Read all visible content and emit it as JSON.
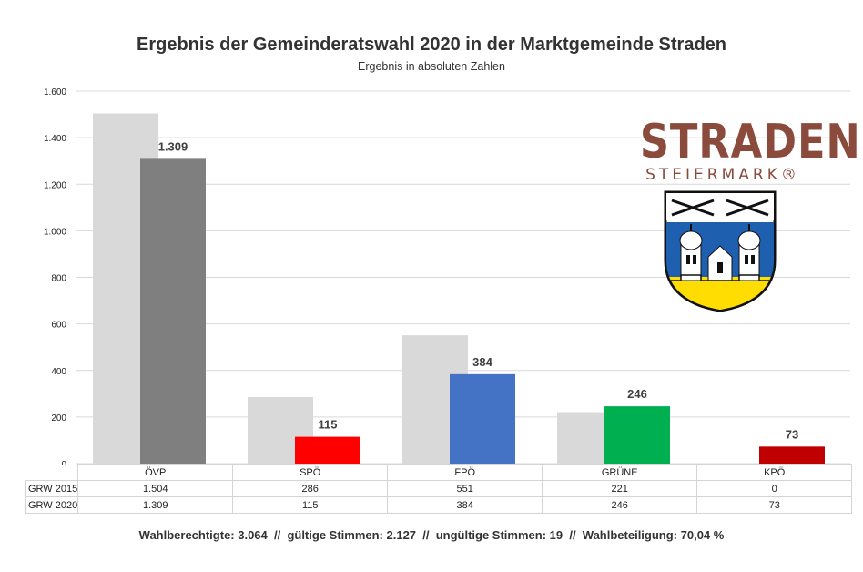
{
  "chart_data": {
    "type": "bar",
    "title": "Ergebnis der Gemeinderatswahl 2020 in der Marktgemeinde Straden",
    "subtitle": "Ergebnis in absoluten Zahlen",
    "categories": [
      "ÖVP",
      "SPÖ",
      "FPÖ",
      "GRÜNE",
      "KPÖ"
    ],
    "series": [
      {
        "name": "GRW 2015",
        "values": [
          1504,
          286,
          551,
          221,
          0
        ],
        "color": "#d9d9d9"
      },
      {
        "name": "GRW 2020",
        "values": [
          1309,
          115,
          384,
          246,
          73
        ],
        "colors": [
          "#7f7f7f",
          "#ff0000",
          "#4472c4",
          "#00b050",
          "#c00000"
        ]
      }
    ],
    "data_labels_2020": [
      "1.309",
      "115",
      "384",
      "246",
      "73"
    ],
    "ylim": [
      0,
      1600
    ],
    "yticks": [
      0,
      200,
      400,
      600,
      800,
      1000,
      1200,
      1400,
      1600
    ],
    "ytick_labels": [
      "0",
      "200",
      "400",
      "600",
      "800",
      "1.000",
      "1.200",
      "1.400",
      "1.600"
    ],
    "grid": true,
    "legend": "data table below chart"
  },
  "table": {
    "rows": [
      {
        "label": "GRW 2015",
        "cells": [
          "1.504",
          "286",
          "551",
          "221",
          "0"
        ]
      },
      {
        "label": "GRW 2020",
        "cells": [
          "1.309",
          "115",
          "384",
          "246",
          "73"
        ]
      }
    ]
  },
  "footer": "Wahlberechtigte: 3.064  //  gültige Stimmen: 2.127  //  ungültige Stimmen: 19  //  Wahlbeteiligung: 70,04 %",
  "logo": {
    "word": "STRADEN",
    "sub": "STEIERMARK®"
  }
}
